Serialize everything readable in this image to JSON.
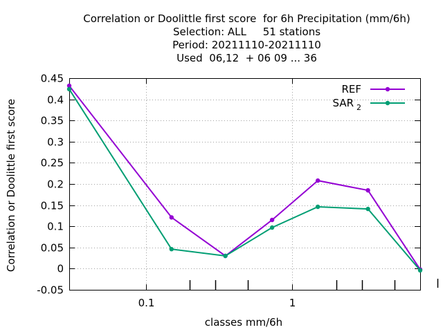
{
  "chart_data": {
    "type": "line",
    "title_lines": [
      "Correlation or Doolittle first score  for 6h Precipitation (mm/6h)",
      "Selection: ALL     51 stations",
      "Period: 20211110-20211110",
      "Used  06,12  + 06 09 ... 36"
    ],
    "xlabel": "classes mm/6h",
    "ylabel": "Correlation or Doolittle first score",
    "x_scale": "log",
    "xlim": [
      0.03,
      7.5
    ],
    "ylim": [
      -0.05,
      0.45
    ],
    "x_ticks": [
      {
        "value": 0.1,
        "label": "0.1"
      },
      {
        "value": 1,
        "label": "1"
      }
    ],
    "x_minor_ticks": [
      0.2,
      0.3,
      0.5,
      2,
      3,
      5
    ],
    "y_ticks": [
      {
        "value": -0.05,
        "label": "-0.05"
      },
      {
        "value": 0,
        "label": "0"
      },
      {
        "value": 0.05,
        "label": "0.05"
      },
      {
        "value": 0.1,
        "label": "0.1"
      },
      {
        "value": 0.15,
        "label": "0.15"
      },
      {
        "value": 0.2,
        "label": "0.2"
      },
      {
        "value": 0.25,
        "label": "0.25"
      },
      {
        "value": 0.3,
        "label": "0.3"
      },
      {
        "value": 0.35,
        "label": "0.35"
      },
      {
        "value": 0.4,
        "label": "0.4"
      },
      {
        "value": 0.45,
        "label": "0.45"
      }
    ],
    "grid": true,
    "legend_position": "top-right",
    "x": [
      0.03,
      0.15,
      0.35,
      0.73,
      1.5,
      3.3,
      7.5
    ],
    "series": [
      {
        "name": "REF",
        "label_main": "REF",
        "label_sub": "",
        "color": "#9400d3",
        "values": [
          0.432,
          0.121,
          0.03,
          0.115,
          0.208,
          0.185,
          -0.002
        ]
      },
      {
        "name": "SAR 2",
        "label_main": "SAR",
        "label_sub": "2",
        "color": "#009e73",
        "values": [
          0.424,
          0.046,
          0.03,
          0.097,
          0.146,
          0.141,
          -0.004
        ]
      }
    ]
  }
}
